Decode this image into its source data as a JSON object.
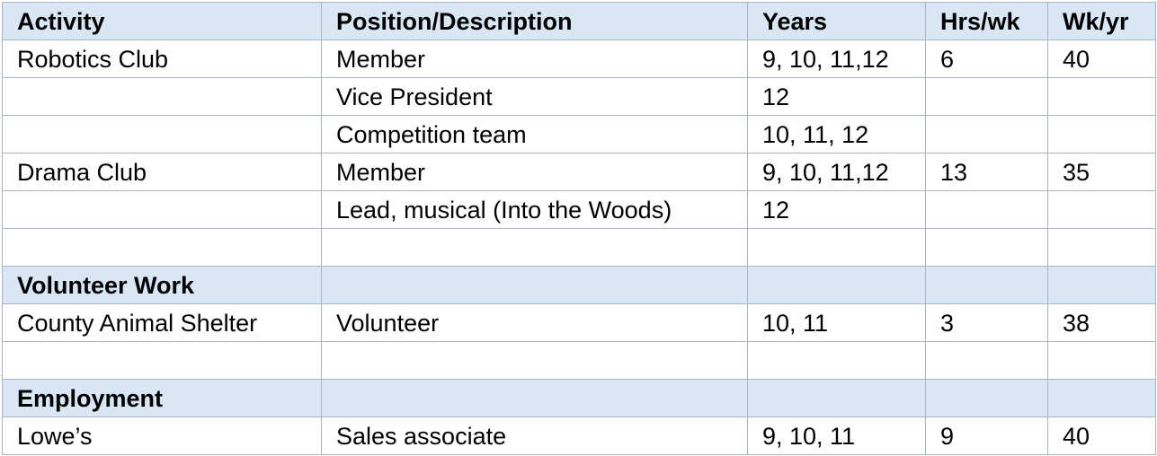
{
  "table": {
    "headers": [
      "Activity",
      "Position/Description",
      "Years",
      "Hrs/wk",
      "Wk/yr"
    ],
    "rows": [
      {
        "type": "data",
        "cells": [
          "Robotics Club",
          "Member",
          "9, 10, 11,12",
          "6",
          "40"
        ]
      },
      {
        "type": "data",
        "cells": [
          "",
          "Vice President",
          "12",
          "",
          ""
        ]
      },
      {
        "type": "data",
        "cells": [
          "",
          "Competition team",
          "10, 11, 12",
          "",
          ""
        ]
      },
      {
        "type": "data",
        "cells": [
          "Drama Club",
          "Member",
          "9, 10, 11,12",
          "13",
          "35"
        ]
      },
      {
        "type": "data",
        "cells": [
          "",
          "Lead, musical (Into the Woods)",
          "12",
          "",
          ""
        ]
      },
      {
        "type": "data",
        "cells": [
          "",
          "",
          "",
          "",
          ""
        ]
      },
      {
        "type": "section",
        "cells": [
          "Volunteer Work",
          "",
          "",
          "",
          ""
        ]
      },
      {
        "type": "data",
        "cells": [
          "County Animal Shelter",
          "Volunteer",
          "10, 11",
          "3",
          "38"
        ]
      },
      {
        "type": "data",
        "cells": [
          "",
          "",
          "",
          "",
          ""
        ]
      },
      {
        "type": "section",
        "cells": [
          "Employment",
          "",
          "",
          "",
          ""
        ]
      },
      {
        "type": "data",
        "cells": [
          "Lowe’s",
          "Sales associate",
          "9, 10, 11",
          "9",
          "40"
        ]
      }
    ]
  }
}
